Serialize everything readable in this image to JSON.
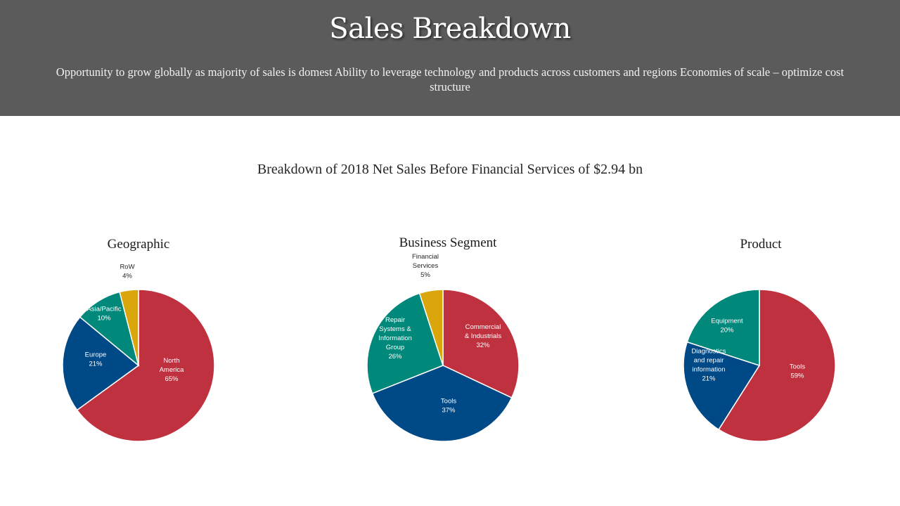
{
  "header": {
    "title": "Sales Breakdown",
    "subtitle": "Opportunity to grow globally as majority of sales is domest Ability to leverage technology and products across customers and regions Economies of scale – optimize cost structure",
    "background": "#5b5b5b"
  },
  "caption": "Breakdown of 2018 Net Sales Before Financial Services of $2.94 bn",
  "colors": {
    "red": "#c0313f",
    "blue": "#004987",
    "teal": "#00887a",
    "gold": "#d9a60b"
  },
  "chart_data": [
    {
      "type": "pie",
      "title": "Geographic",
      "slices": [
        {
          "label": [
            "North",
            "America",
            "65%"
          ],
          "value": 65,
          "color": "#c0313f",
          "text_color": "#ffffff"
        },
        {
          "label": [
            "Europe",
            "21%"
          ],
          "value": 21,
          "color": "#004987",
          "text_color": "#ffffff"
        },
        {
          "label": [
            "Asia/Pacific",
            "10%"
          ],
          "value": 10,
          "color": "#00887a",
          "text_color": "#ffffff"
        },
        {
          "label": [
            "RoW",
            "4%"
          ],
          "value": 4,
          "color": "#d9a60b",
          "text_color": "#262626"
        }
      ]
    },
    {
      "type": "pie",
      "title": "Business Segment",
      "slices": [
        {
          "label": [
            "Commercial",
            "& Industrials",
            "32%"
          ],
          "value": 32,
          "color": "#c0313f",
          "text_color": "#ffffff"
        },
        {
          "label": [
            "Tools",
            "37%"
          ],
          "value": 37,
          "color": "#004987",
          "text_color": "#ffffff"
        },
        {
          "label": [
            "Repair",
            "Systems &",
            "Information",
            "Group",
            "26%"
          ],
          "value": 26,
          "color": "#00887a",
          "text_color": "#ffffff"
        },
        {
          "label": [
            "Financial",
            "Services",
            "5%"
          ],
          "value": 5,
          "color": "#d9a60b",
          "text_color": "#262626"
        }
      ]
    },
    {
      "type": "pie",
      "title": "Product",
      "slices": [
        {
          "label": [
            "Tools",
            "59%"
          ],
          "value": 59,
          "color": "#c0313f",
          "text_color": "#ffffff"
        },
        {
          "label": [
            "Diagnostics",
            "and repair",
            "information",
            "21%"
          ],
          "value": 21,
          "color": "#004987",
          "text_color": "#ffffff"
        },
        {
          "label": [
            "Equipment",
            "20%"
          ],
          "value": 20,
          "color": "#00887a",
          "text_color": "#ffffff"
        }
      ]
    }
  ]
}
